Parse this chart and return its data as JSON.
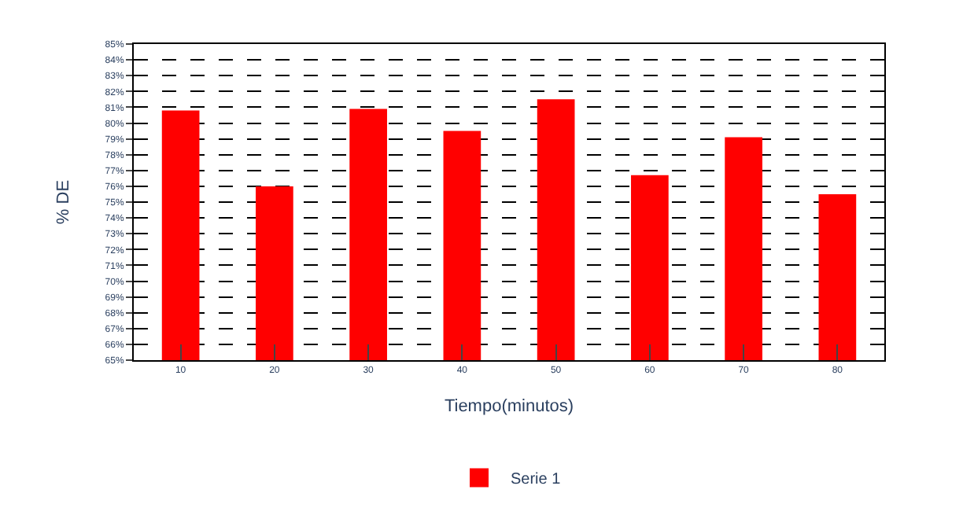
{
  "chart_data": {
    "type": "bar",
    "xlabel": "Tiempo(minutos)",
    "ylabel": "% DE",
    "categories": [
      "10",
      "20",
      "30",
      "40",
      "50",
      "60",
      "70",
      "80"
    ],
    "series": [
      {
        "name": "Serie 1",
        "color": "#ff0000",
        "values": [
          80.8,
          76.0,
          80.9,
          79.5,
          81.5,
          76.7,
          79.1,
          75.5
        ]
      }
    ],
    "ylim": [
      65,
      85
    ],
    "yticks": [
      {
        "value": 65,
        "label": "65%"
      },
      {
        "value": 66,
        "label": "66%"
      },
      {
        "value": 67,
        "label": "67%"
      },
      {
        "value": 68,
        "label": "68%"
      },
      {
        "value": 69,
        "label": "69%"
      },
      {
        "value": 70,
        "label": "70%"
      },
      {
        "value": 71,
        "label": "71%"
      },
      {
        "value": 72,
        "label": "72%"
      },
      {
        "value": 73,
        "label": "73%"
      },
      {
        "value": 74,
        "label": "74%"
      },
      {
        "value": 75,
        "label": "75%"
      },
      {
        "value": 76,
        "label": "76%"
      },
      {
        "value": 77,
        "label": "77%"
      },
      {
        "value": 78,
        "label": "78%"
      },
      {
        "value": 79,
        "label": "79%"
      },
      {
        "value": 80,
        "label": "80%"
      },
      {
        "value": 81,
        "label": "81%"
      },
      {
        "value": 82,
        "label": "82%"
      },
      {
        "value": 83,
        "label": "83%"
      },
      {
        "value": 84,
        "label": "84%"
      },
      {
        "value": 85,
        "label": "85%"
      }
    ],
    "grid": "y",
    "legend": "bottom"
  }
}
